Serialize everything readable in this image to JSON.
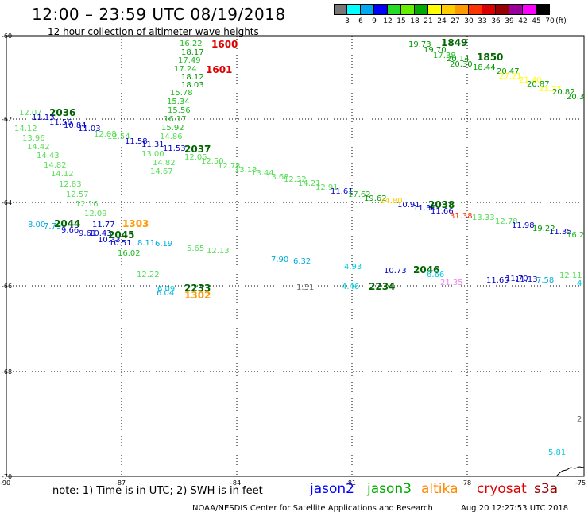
{
  "header": {
    "title": "12:00 – 23:59 UTC 08/19/2018",
    "subtitle": "12 hour collection of altimeter wave heights"
  },
  "scale": {
    "unit": "(ft)",
    "ticks": [
      "3",
      "6",
      "9",
      "12",
      "15",
      "18",
      "21",
      "24",
      "27",
      "30",
      "33",
      "36",
      "39",
      "42",
      "45",
      "70"
    ],
    "colors": [
      "#777777",
      "#00ffff",
      "#00aaee",
      "#0000ff",
      "#22dd22",
      "#66ee00",
      "#00aa00",
      "#ffff00",
      "#ffcc00",
      "#ff9900",
      "#ff3300",
      "#dd0000",
      "#990000",
      "#990099",
      "#ff00ff",
      "#000000"
    ]
  },
  "axes": {
    "lat_labels": [
      "-60",
      "-62",
      "-64",
      "-66",
      "-68",
      "-70"
    ],
    "lon_labels": [
      "-90",
      "-87",
      "-84",
      "-81",
      "-78",
      "-75"
    ]
  },
  "observations": [
    {
      "t": "1600",
      "c": "#dd0000",
      "b": 1
    },
    {
      "t": "1601",
      "c": "#dd0000",
      "b": 1
    },
    {
      "t": "16.22",
      "c": "#22bb22"
    },
    {
      "t": "18.17",
      "c": "#009900"
    },
    {
      "t": "17.49",
      "c": "#22bb22"
    },
    {
      "t": "17.24",
      "c": "#22bb22"
    },
    {
      "t": "18.12",
      "c": "#009900"
    },
    {
      "t": "18.03",
      "c": "#009900"
    },
    {
      "t": "15.78",
      "c": "#22bb22"
    },
    {
      "t": "15.34",
      "c": "#22bb22"
    },
    {
      "t": "15.56",
      "c": "#22bb22"
    },
    {
      "t": "16.17",
      "c": "#22bb22"
    },
    {
      "t": "15.92",
      "c": "#22bb22"
    },
    {
      "t": "14.86",
      "c": "#55dd55"
    },
    {
      "t": "11.58",
      "c": "#0000cc"
    },
    {
      "t": "11.31",
      "c": "#0000cc"
    },
    {
      "t": "11.53",
      "c": "#0000cc"
    },
    {
      "t": "13.00",
      "c": "#55dd55"
    },
    {
      "t": "14.82",
      "c": "#55dd55"
    },
    {
      "t": "14.67",
      "c": "#55dd55"
    },
    {
      "t": "12.05",
      "c": "#55dd55"
    },
    {
      "t": "12.50",
      "c": "#55dd55"
    },
    {
      "t": "2037",
      "c": "#006600",
      "b": 1
    },
    {
      "t": "12.07",
      "c": "#55dd55"
    },
    {
      "t": "2036",
      "c": "#006600",
      "b": 1
    },
    {
      "t": "11.13",
      "c": "#0000cc"
    },
    {
      "t": "11.56",
      "c": "#0000cc"
    },
    {
      "t": "10.84",
      "c": "#0000cc"
    },
    {
      "t": "11.03",
      "c": "#0000cc"
    },
    {
      "t": "14.12",
      "c": "#55dd55"
    },
    {
      "t": "13.96",
      "c": "#55dd55"
    },
    {
      "t": "12.08",
      "c": "#55dd55"
    },
    {
      "t": "12.54",
      "c": "#55dd55"
    },
    {
      "t": "14.42",
      "c": "#55dd55"
    },
    {
      "t": "14.43",
      "c": "#55dd55"
    },
    {
      "t": "14.82",
      "c": "#55dd55"
    },
    {
      "t": "14.12",
      "c": "#55dd55"
    },
    {
      "t": "12.83",
      "c": "#55dd55"
    },
    {
      "t": "12.57",
      "c": "#55dd55"
    },
    {
      "t": "12.16",
      "c": "#55dd55"
    },
    {
      "t": "12.09",
      "c": "#55dd55"
    },
    {
      "t": "8.00",
      "c": "#00aadd"
    },
    {
      "t": "7.79",
      "c": "#00aadd"
    },
    {
      "t": "2044",
      "c": "#006600",
      "b": 1
    },
    {
      "t": "9.66",
      "c": "#0000cc"
    },
    {
      "t": "11.77",
      "c": "#0000cc"
    },
    {
      "t": "1303",
      "c": "#ff9900",
      "b": 1
    },
    {
      "t": "9.61",
      "c": "#0000cc"
    },
    {
      "t": "10.43",
      "c": "#0000cc"
    },
    {
      "t": "10.33",
      "c": "#0000cc"
    },
    {
      "t": "2045",
      "c": "#006600",
      "b": 1
    },
    {
      "t": "10.51",
      "c": "#0000cc"
    },
    {
      "t": "8.11",
      "c": "#00aadd"
    },
    {
      "t": "6.19",
      "c": "#00aadd"
    },
    {
      "t": "16.02",
      "c": "#22bb22"
    },
    {
      "t": "5.65",
      "c": "#55dd55"
    },
    {
      "t": "12.13",
      "c": "#55dd55"
    },
    {
      "t": "12.22",
      "c": "#55dd55"
    },
    {
      "t": "6.09",
      "c": "#00ccdd"
    },
    {
      "t": "6.04",
      "c": "#00aadd"
    },
    {
      "t": "2233",
      "c": "#006600",
      "b": 1
    },
    {
      "t": "1302",
      "c": "#ff9900",
      "b": 1
    },
    {
      "t": "12.78",
      "c": "#55dd55"
    },
    {
      "t": "13.13",
      "c": "#55dd55"
    },
    {
      "t": "13.44",
      "c": "#55dd55"
    },
    {
      "t": "13.68",
      "c": "#55dd55"
    },
    {
      "t": "12.32",
      "c": "#55dd55"
    },
    {
      "t": "14.21",
      "c": "#55dd55"
    },
    {
      "t": "12.91",
      "c": "#55dd55"
    },
    {
      "t": "11.61",
      "c": "#0000cc"
    },
    {
      "t": "17.62",
      "c": "#22bb22"
    },
    {
      "t": "19.62",
      "c": "#009900"
    },
    {
      "t": "24.80",
      "c": "#ffcc00"
    },
    {
      "t": "10.91",
      "c": "#0000cc"
    },
    {
      "t": "2038",
      "c": "#006600",
      "b": 1
    },
    {
      "t": "11.30",
      "c": "#0000cc"
    },
    {
      "t": "11.66",
      "c": "#0000cc"
    },
    {
      "t": "31.38",
      "c": "#ff3300"
    },
    {
      "t": "13.33",
      "c": "#55dd55"
    },
    {
      "t": "12.78",
      "c": "#55dd55"
    },
    {
      "t": "11.98",
      "c": "#0000cc"
    },
    {
      "t": "19.22",
      "c": "#009900"
    },
    {
      "t": "11.35",
      "c": "#0000cc"
    },
    {
      "t": "16.2",
      "c": "#22bb22"
    },
    {
      "t": "7.90",
      "c": "#00aadd"
    },
    {
      "t": "6.32",
      "c": "#00aadd"
    },
    {
      "t": "4.93",
      "c": "#00ccdd"
    },
    {
      "t": "10.73",
      "c": "#0000cc"
    },
    {
      "t": "2046",
      "c": "#006600",
      "b": 1
    },
    {
      "t": "6.66",
      "c": "#00ccdd"
    },
    {
      "t": "1.31",
      "c": "#666666"
    },
    {
      "t": "4.46",
      "c": "#00ccdd"
    },
    {
      "t": "2234",
      "c": "#006600",
      "b": 1
    },
    {
      "t": "21.35",
      "c": "#ee88ee"
    },
    {
      "t": "11.65",
      "c": "#0000cc"
    },
    {
      "t": "11.70",
      "c": "#0000cc"
    },
    {
      "t": "11.13",
      "c": "#0000cc"
    },
    {
      "t": "7.58",
      "c": "#00aadd"
    },
    {
      "t": "12.11",
      "c": "#55dd55"
    },
    {
      "t": "4",
      "c": "#00ccdd"
    },
    {
      "t": "19.73",
      "c": "#009900"
    },
    {
      "t": "1849",
      "c": "#006600",
      "b": 1
    },
    {
      "t": "19.70",
      "c": "#009900"
    },
    {
      "t": "17.38",
      "c": "#22bb22"
    },
    {
      "t": "20.14",
      "c": "#009900"
    },
    {
      "t": "1850",
      "c": "#006600",
      "b": 1
    },
    {
      "t": "20.30",
      "c": "#009900"
    },
    {
      "t": "18.44",
      "c": "#009900"
    },
    {
      "t": "20.47",
      "c": "#009900"
    },
    {
      "t": "27.21",
      "c": "#ffff00"
    },
    {
      "t": "21.40",
      "c": "#ffff00"
    },
    {
      "t": "20.87",
      "c": "#009900"
    },
    {
      "t": "21.27",
      "c": "#ffff00"
    },
    {
      "t": "20.82",
      "c": "#009900"
    },
    {
      "t": "20.3",
      "c": "#009900"
    },
    {
      "t": "5.81",
      "c": "#00ccdd"
    },
    {
      "t": "2",
      "c": "#666666"
    }
  ],
  "footer": {
    "note": "note: 1) Time is in UTC; 2) SWH is in feet",
    "satellites": [
      {
        "name": "jason2",
        "color": "#0000ff"
      },
      {
        "name": "jason3",
        "color": "#00aa00"
      },
      {
        "name": "altika",
        "color": "#ff8800"
      },
      {
        "name": "cryosat",
        "color": "#dd0000"
      },
      {
        "name": "s3a",
        "color": "#990000"
      }
    ],
    "credit": "NOAA/NESDIS Center for Satellite Applications and Research",
    "timestamp": "Aug 20 12:27:53 UTC 2018"
  }
}
